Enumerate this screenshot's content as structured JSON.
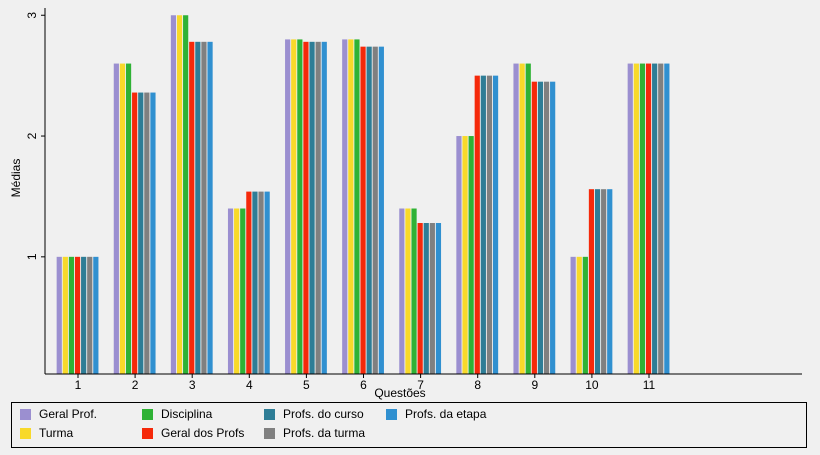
{
  "chart_data": {
    "type": "bar",
    "title": "",
    "xlabel": "Questões",
    "ylabel": "Médias",
    "categories": [
      "1",
      "2",
      "3",
      "4",
      "5",
      "6",
      "7",
      "8",
      "9",
      "10",
      "11"
    ],
    "ylim": [
      0.03,
      3.06
    ],
    "yticks": [
      1,
      2,
      3
    ],
    "xlim_categories": 14.5,
    "grid": false,
    "legend_position": "bottom",
    "series": [
      {
        "name": "Geral Prof.",
        "color": "#9b8fd0",
        "values": [
          1.0,
          2.6,
          3.0,
          1.4,
          2.8,
          2.8,
          1.4,
          2.0,
          2.6,
          1.0,
          2.6
        ]
      },
      {
        "name": "Turma",
        "color": "#f8d92a",
        "values": [
          1.0,
          2.6,
          3.0,
          1.4,
          2.8,
          2.8,
          1.4,
          2.0,
          2.6,
          1.0,
          2.6
        ]
      },
      {
        "name": "Disciplina",
        "color": "#2fb235",
        "values": [
          1.0,
          2.6,
          3.0,
          1.4,
          2.8,
          2.8,
          1.4,
          2.0,
          2.6,
          1.0,
          2.6
        ]
      },
      {
        "name": "Geral dos Profs",
        "color": "#f5290a",
        "values": [
          1.0,
          2.36,
          2.78,
          1.54,
          2.78,
          2.74,
          1.28,
          2.5,
          2.45,
          1.56,
          2.6
        ]
      },
      {
        "name": "Profs. do curso",
        "color": "#2e7d96",
        "values": [
          1.0,
          2.36,
          2.78,
          1.54,
          2.78,
          2.74,
          1.28,
          2.5,
          2.45,
          1.56,
          2.6
        ]
      },
      {
        "name": "Profs. da turma",
        "color": "#808080",
        "values": [
          1.0,
          2.36,
          2.78,
          1.54,
          2.78,
          2.74,
          1.28,
          2.5,
          2.45,
          1.56,
          2.6
        ]
      },
      {
        "name": "Profs. da etapa",
        "color": "#3090d0",
        "values": [
          1.0,
          2.36,
          2.78,
          1.54,
          2.78,
          2.74,
          1.28,
          2.5,
          2.45,
          1.56,
          2.6
        ]
      }
    ]
  }
}
